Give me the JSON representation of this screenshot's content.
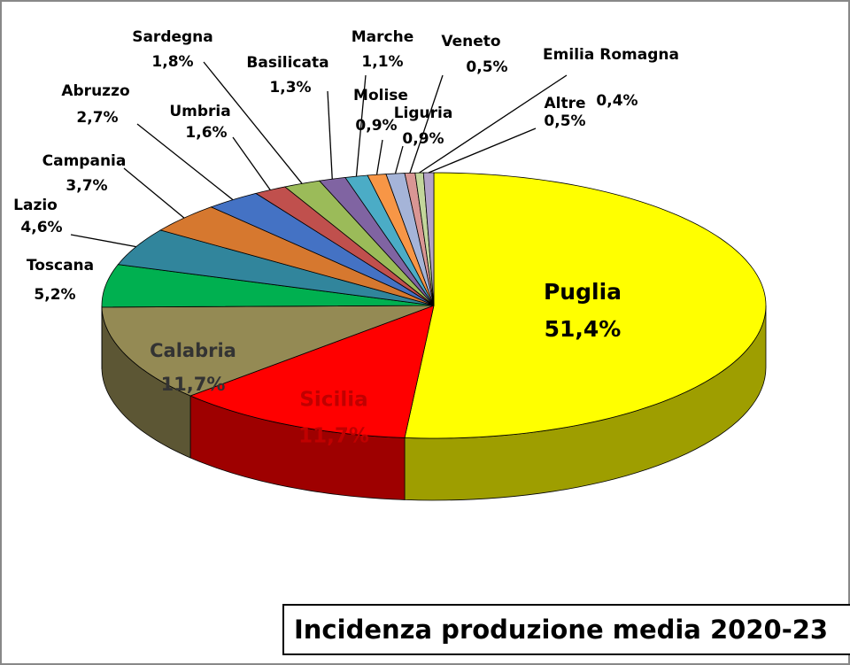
{
  "chart_data": {
    "type": "pie3d",
    "title": "Incidenza produzione media 2020-23",
    "categories": [
      "Puglia",
      "Sicilia",
      "Calabria",
      "Toscana",
      "Lazio",
      "Campania",
      "Abruzzo",
      "Umbria",
      "Sardegna",
      "Basilicata",
      "Marche",
      "Molise",
      "Liguria",
      "Veneto",
      "Emilia Romagna",
      "Altre"
    ],
    "values": [
      51.4,
      11.7,
      11.7,
      5.2,
      4.6,
      3.7,
      2.7,
      1.6,
      1.8,
      1.3,
      1.1,
      0.9,
      0.9,
      0.5,
      0.4,
      0.5
    ],
    "value_labels": [
      "51,4%",
      "11,7%",
      "11,7%",
      "5,2%",
      "4,6%",
      "3,7%",
      "2,7%",
      "1,6%",
      "1,8%",
      "1,3%",
      "1,1%",
      "0,9%",
      "0,9%",
      "0,5%",
      "0,4%",
      "0,5%"
    ],
    "colors": [
      "#ffff00",
      "#ff0000",
      "#948a54",
      "#00b050",
      "#31859c",
      "#d6782f",
      "#4472c4",
      "#c0504d",
      "#9bbb59",
      "#8064a2",
      "#4bacc6",
      "#f79646",
      "#a5b4d8",
      "#d99694",
      "#c3d69b",
      "#b3a2c7"
    ]
  }
}
